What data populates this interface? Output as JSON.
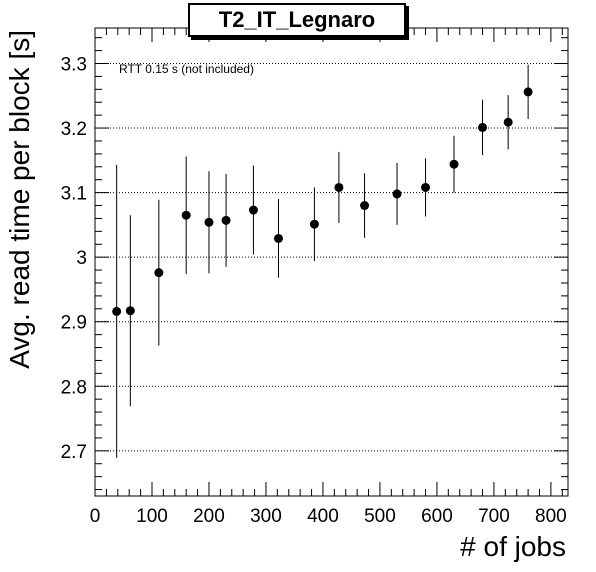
{
  "chart_data": {
    "type": "scatter",
    "title": "T2_IT_Legnaro",
    "xlabel": "# of jobs",
    "ylabel": "Avg. read time per block [s]",
    "annotation": "RTT 0.15 s (not included)",
    "xlim": [
      0,
      830
    ],
    "ylim": [
      2.63,
      3.355
    ],
    "x_ticks": [
      0,
      100,
      200,
      300,
      400,
      500,
      600,
      700,
      800
    ],
    "y_ticks": [
      2.7,
      2.8,
      2.9,
      3.0,
      3.1,
      3.2,
      3.3
    ],
    "x_tick_labels": [
      "0",
      "100",
      "200",
      "300",
      "400",
      "500",
      "600",
      "700",
      "800"
    ],
    "y_tick_labels": [
      "2.7",
      "2.8",
      "2.9",
      "3",
      "3.1",
      "3.2",
      "3.3"
    ],
    "grid": "horizontal dotted at major y ticks",
    "marker_color": "#000000",
    "points": [
      {
        "x": 38,
        "y": 2.916,
        "err": 0.227
      },
      {
        "x": 62,
        "y": 2.917,
        "err": 0.148
      },
      {
        "x": 112,
        "y": 2.976,
        "err": 0.113
      },
      {
        "x": 160,
        "y": 3.065,
        "err": 0.091
      },
      {
        "x": 200,
        "y": 3.054,
        "err": 0.079
      },
      {
        "x": 230,
        "y": 3.057,
        "err": 0.072
      },
      {
        "x": 278,
        "y": 3.073,
        "err": 0.069
      },
      {
        "x": 322,
        "y": 3.029,
        "err": 0.061
      },
      {
        "x": 385,
        "y": 3.051,
        "err": 0.057
      },
      {
        "x": 428,
        "y": 3.108,
        "err": 0.055
      },
      {
        "x": 473,
        "y": 3.08,
        "err": 0.05
      },
      {
        "x": 530,
        "y": 3.098,
        "err": 0.048
      },
      {
        "x": 580,
        "y": 3.108,
        "err": 0.045
      },
      {
        "x": 630,
        "y": 3.144,
        "err": 0.044
      },
      {
        "x": 680,
        "y": 3.201,
        "err": 0.043
      },
      {
        "x": 725,
        "y": 3.209,
        "err": 0.042
      },
      {
        "x": 760,
        "y": 3.256,
        "err": 0.042
      }
    ]
  }
}
